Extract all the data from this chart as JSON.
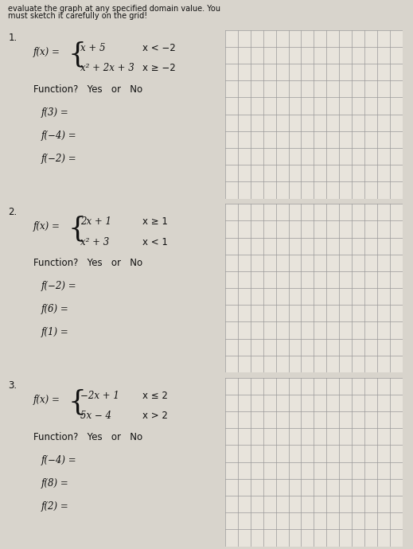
{
  "bg_color": "#d8d4cc",
  "paper_color": "#e8e4dc",
  "text_color": "#111111",
  "grid_line_color": "#999999",
  "axis_color": "#111111",
  "header_line1": "evaluate the graph at any specified domain value. You",
  "header_line2": "must sketch it carefully on the grid!",
  "problems": [
    {
      "number": "1.",
      "func_label": "f(x) =",
      "piece1_expr": "x + 5",
      "piece1_cond": "x < −2",
      "piece2_expr": "x² + 2x + 3",
      "piece2_cond": "x ≥ −2",
      "function_q": "Function?   Yes   or   No",
      "eval1_label": "f(3) =",
      "eval2_label": "f(−4) =",
      "eval3_label": "f(−2) ="
    },
    {
      "number": "2.",
      "func_label": "f(x) =",
      "piece1_expr": "2x + 1",
      "piece1_cond": "x ≥ 1",
      "piece2_expr": "x² + 3",
      "piece2_cond": "x < 1",
      "function_q": "Function?   Yes   or   No",
      "eval1_label": "f(−2) =",
      "eval2_label": "f(6) =",
      "eval3_label": "f(1) ="
    },
    {
      "number": "3.",
      "func_label": "f(x) =",
      "piece1_expr": "−2x + 1",
      "piece1_cond": "x ≤ 2",
      "piece2_expr": "5x − 4",
      "piece2_cond": "x > 2",
      "function_q": "Function?   Yes   or   No",
      "eval1_label": "f(−4) =",
      "eval2_label": "f(8) =",
      "eval3_label": "f(2) ="
    }
  ],
  "grid_rows": 10,
  "grid_cols": 14,
  "figsize": [
    5.19,
    6.9
  ],
  "dpi": 100
}
